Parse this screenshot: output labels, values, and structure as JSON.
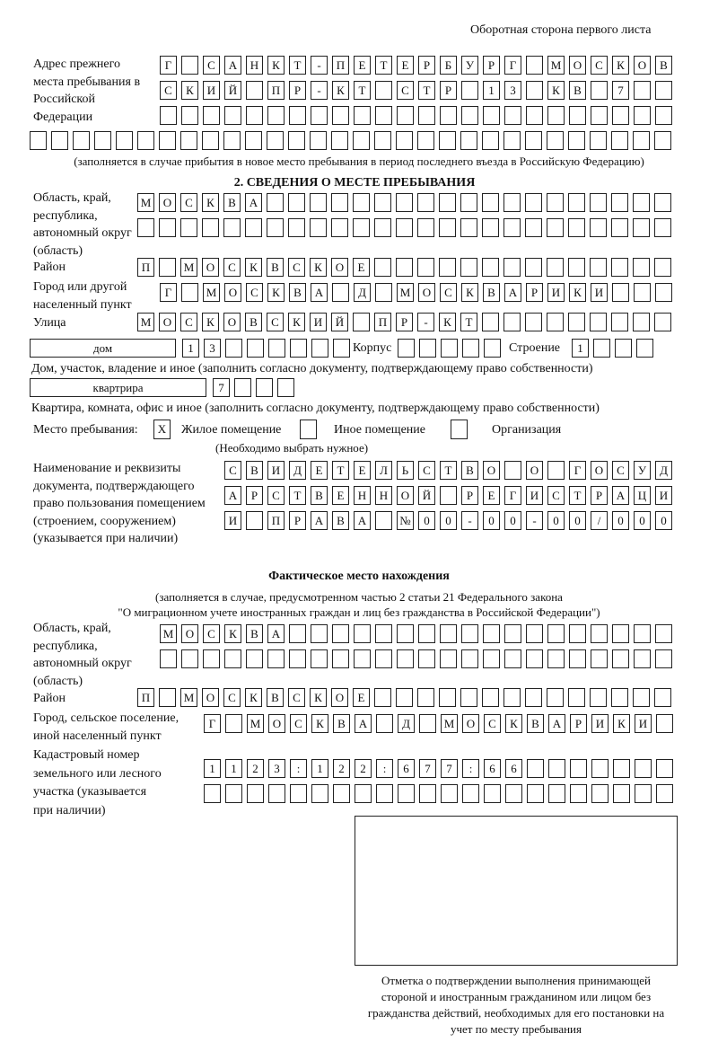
{
  "header": "Оборотная сторона первого листа",
  "prev_address": {
    "label": "Адрес прежнего места пребывания в Российской Федерации",
    "rows": [
      [
        "Г",
        "",
        "С",
        "А",
        "Н",
        "К",
        "Т",
        "-",
        "П",
        "Е",
        "Т",
        "Е",
        "Р",
        "Б",
        "У",
        "Р",
        "Г",
        "",
        "М",
        "О",
        "С",
        "К",
        "О",
        "В"
      ],
      [
        "С",
        "К",
        "И",
        "Й",
        "",
        "П",
        "Р",
        "-",
        "К",
        "Т",
        "",
        "С",
        "Т",
        "Р",
        "",
        "1",
        "3",
        "",
        "К",
        "В",
        "",
        "7",
        "",
        ""
      ],
      [
        "",
        "",
        "",
        "",
        "",
        "",
        "",
        "",
        "",
        "",
        "",
        "",
        "",
        "",
        "",
        "",
        "",
        "",
        "",
        "",
        "",
        "",
        "",
        ""
      ],
      [
        "",
        "",
        "",
        "",
        "",
        "",
        "",
        "",
        "",
        "",
        "",
        "",
        "",
        "",
        "",
        "",
        "",
        "",
        "",
        "",
        "",
        "",
        "",
        "",
        "",
        "",
        "",
        "",
        "",
        ""
      ]
    ],
    "note": "(заполняется в случае прибытия в новое место пребывания в период последнего въезда в Российскую Федерацию)"
  },
  "section2": {
    "title": "2. СВЕДЕНИЯ О МЕСТЕ ПРЕБЫВАНИЯ",
    "region_label": "Область, край, республика, автономный округ (область)",
    "region_rows": [
      [
        "М",
        "О",
        "С",
        "К",
        "В",
        "А",
        "",
        "",
        "",
        "",
        "",
        "",
        "",
        "",
        "",
        "",
        "",
        "",
        "",
        "",
        "",
        "",
        "",
        "",
        ""
      ],
      [
        "",
        "",
        "",
        "",
        "",
        "",
        "",
        "",
        "",
        "",
        "",
        "",
        "",
        "",
        "",
        "",
        "",
        "",
        "",
        "",
        "",
        "",
        "",
        "",
        ""
      ]
    ],
    "district_label": "Район",
    "district_row": [
      "П",
      "",
      "М",
      "О",
      "С",
      "К",
      "В",
      "С",
      "К",
      "О",
      "Е",
      "",
      "",
      "",
      "",
      "",
      "",
      "",
      "",
      "",
      "",
      "",
      "",
      "",
      ""
    ],
    "city_label": "Город или другой населенный пункт",
    "city_row": [
      "Г",
      "",
      "М",
      "О",
      "С",
      "К",
      "В",
      "А",
      "",
      "Д",
      "",
      "М",
      "О",
      "С",
      "К",
      "В",
      "А",
      "Р",
      "И",
      "К",
      "И",
      "",
      "",
      ""
    ],
    "street_label": "Улица",
    "street_row": [
      "М",
      "О",
      "С",
      "К",
      "О",
      "В",
      "С",
      "К",
      "И",
      "Й",
      "",
      "П",
      "Р",
      "-",
      "К",
      "Т",
      "",
      "",
      "",
      "",
      "",
      "",
      "",
      "",
      ""
    ],
    "house_type": "дом",
    "house_cells": [
      "1",
      "3",
      "",
      "",
      "",
      "",
      "",
      ""
    ],
    "korpus_label": "Корпус",
    "korpus_cells": [
      "",
      "",
      "",
      "",
      ""
    ],
    "building_label": "Строение",
    "building_cells": [
      "1",
      "",
      "",
      ""
    ],
    "house_note": "Дом, участок, владение и иное (заполнить согласно документу, подтверждающему право собственности)",
    "apt_type": "квартрира",
    "apt_cells": [
      "7",
      "",
      "",
      ""
    ],
    "apt_note": "Квартира, комната, офис и иное (заполнить согласно документу, подтверждающему право собственности)",
    "stay_label": "Место пребывания:",
    "stay_options": [
      {
        "label": "Жилое помещение",
        "mark": "X"
      },
      {
        "label": "Иное помещение",
        "mark": ""
      },
      {
        "label": "Организация",
        "mark": ""
      }
    ],
    "stay_note": "(Необходимо выбрать нужное)",
    "doc_label": "Наименование и реквизиты документа, подтверждающего право пользования помещением (строением, сооружением) (указывается при наличии)",
    "doc_rows": [
      [
        "С",
        "В",
        "И",
        "Д",
        "Е",
        "Т",
        "Е",
        "Л",
        "Ь",
        "С",
        "Т",
        "В",
        "О",
        "",
        "О",
        "",
        "Г",
        "О",
        "С",
        "У",
        "Д"
      ],
      [
        "А",
        "Р",
        "С",
        "Т",
        "В",
        "Е",
        "Н",
        "Н",
        "О",
        "Й",
        "",
        "Р",
        "Е",
        "Г",
        "И",
        "С",
        "Т",
        "Р",
        "А",
        "Ц",
        "И"
      ],
      [
        "И",
        "",
        "П",
        "Р",
        "А",
        "В",
        "А",
        "",
        "№",
        "0",
        "0",
        "-",
        "0",
        "0",
        "-",
        "0",
        "0",
        "/",
        "0",
        "0",
        "0"
      ]
    ]
  },
  "actual": {
    "title": "Фактическое место нахождения",
    "note1": "(заполняется в случае, предусмотренном частью 2 статьи 21 Федерального закона",
    "note2": "\"О миграционном учете иностранных граждан и лиц без гражданства в Российской Федерации\")",
    "region_label": "Область, край, республика, автономный округ (область)",
    "region_rows": [
      [
        "М",
        "О",
        "С",
        "К",
        "В",
        "А",
        "",
        "",
        "",
        "",
        "",
        "",
        "",
        "",
        "",
        "",
        "",
        "",
        "",
        "",
        "",
        "",
        "",
        ""
      ],
      [
        "",
        "",
        "",
        "",
        "",
        "",
        "",
        "",
        "",
        "",
        "",
        "",
        "",
        "",
        "",
        "",
        "",
        "",
        "",
        "",
        "",
        "",
        "",
        ""
      ]
    ],
    "district_label": "Район",
    "district_row": [
      "П",
      "",
      "М",
      "О",
      "С",
      "К",
      "В",
      "С",
      "К",
      "О",
      "Е",
      "",
      "",
      "",
      "",
      "",
      "",
      "",
      "",
      "",
      "",
      "",
      "",
      "",
      ""
    ],
    "city_label": "Город, сельское поселение, иной населенный пункт",
    "city_row": [
      "Г",
      "",
      "М",
      "О",
      "С",
      "К",
      "В",
      "А",
      "",
      "Д",
      "",
      "М",
      "О",
      "С",
      "К",
      "В",
      "А",
      "Р",
      "И",
      "К",
      "И",
      ""
    ],
    "cadastral_label": "Кадастровый номер земельного или лесного участка (указывается при наличии)",
    "cadastral_rows": [
      [
        "1",
        "1",
        "2",
        "3",
        ":",
        "1",
        "2",
        "2",
        ":",
        "6",
        "7",
        "7",
        ":",
        "6",
        "6",
        "",
        "",
        "",
        "",
        "",
        "",
        ""
      ],
      [
        "",
        "",
        "",
        "",
        "",
        "",
        "",
        "",
        "",
        "",
        "",
        "",
        "",
        "",
        "",
        "",
        "",
        "",
        "",
        "",
        "",
        ""
      ]
    ]
  },
  "confirmation_note": "Отметка о подтверждении выполнения принимающей стороной и иностранным гражданином или лицом без гражданства действий, необходимых для его постановки на учет по месту пребывания"
}
